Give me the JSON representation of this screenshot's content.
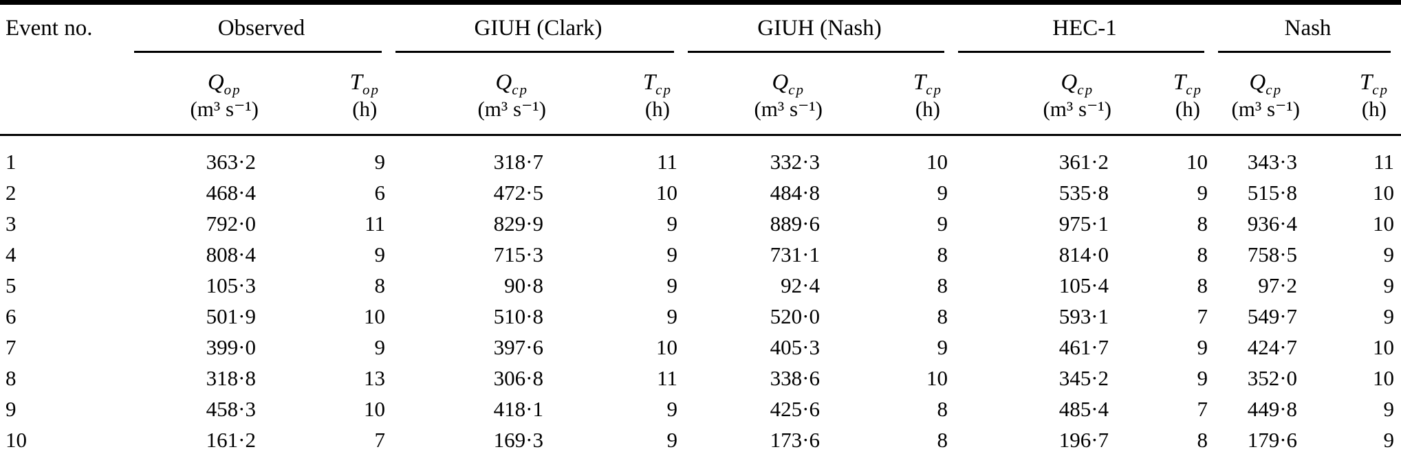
{
  "table": {
    "row_header": "Event no.",
    "groups": [
      {
        "label": "Observed",
        "q_symbol": "Q",
        "q_sub": "op",
        "q_unit": "(m³ s⁻¹)",
        "t_symbol": "T",
        "t_sub": "op",
        "t_unit": "(h)"
      },
      {
        "label": "GIUH (Clark)",
        "q_symbol": "Q",
        "q_sub": "cp",
        "q_unit": "(m³ s⁻¹)",
        "t_symbol": "T",
        "t_sub": "cp",
        "t_unit": "(h)"
      },
      {
        "label": "GIUH (Nash)",
        "q_symbol": "Q",
        "q_sub": "cp",
        "q_unit": "(m³ s⁻¹)",
        "t_symbol": "T",
        "t_sub": "cp",
        "t_unit": "(h)"
      },
      {
        "label": "HEC-1",
        "q_symbol": "Q",
        "q_sub": "cp",
        "q_unit": "(m³ s⁻¹)",
        "t_symbol": "T",
        "t_sub": "cp",
        "t_unit": "(h)"
      },
      {
        "label": "Nash",
        "q_symbol": "Q",
        "q_sub": "cp",
        "q_unit": "(m³ s⁻¹)",
        "t_symbol": "T",
        "t_sub": "cp",
        "t_unit": "(h)"
      }
    ],
    "rows": [
      {
        "event": "1",
        "values": [
          "363·2",
          "9",
          "318·7",
          "11",
          "332·3",
          "10",
          "361·2",
          "10",
          "343·3",
          "11"
        ]
      },
      {
        "event": "2",
        "values": [
          "468·4",
          "6",
          "472·5",
          "10",
          "484·8",
          "9",
          "535·8",
          "9",
          "515·8",
          "10"
        ]
      },
      {
        "event": "3",
        "values": [
          "792·0",
          "11",
          "829·9",
          "9",
          "889·6",
          "9",
          "975·1",
          "8",
          "936·4",
          "10"
        ]
      },
      {
        "event": "4",
        "values": [
          "808·4",
          "9",
          "715·3",
          "9",
          "731·1",
          "8",
          "814·0",
          "8",
          "758·5",
          "9"
        ]
      },
      {
        "event": "5",
        "values": [
          "105·3",
          "8",
          "90·8",
          "9",
          "92·4",
          "8",
          "105·4",
          "8",
          "97·2",
          "9"
        ]
      },
      {
        "event": "6",
        "values": [
          "501·9",
          "10",
          "510·8",
          "9",
          "520·0",
          "8",
          "593·1",
          "7",
          "549·7",
          "9"
        ]
      },
      {
        "event": "7",
        "values": [
          "399·0",
          "9",
          "397·6",
          "10",
          "405·3",
          "9",
          "461·7",
          "9",
          "424·7",
          "10"
        ]
      },
      {
        "event": "8",
        "values": [
          "318·8",
          "13",
          "306·8",
          "11",
          "338·6",
          "10",
          "345·2",
          "9",
          "352·0",
          "10"
        ]
      },
      {
        "event": "9",
        "values": [
          "458·3",
          "10",
          "418·1",
          "9",
          "425·6",
          "8",
          "485·4",
          "7",
          "449·8",
          "9"
        ]
      },
      {
        "event": "10",
        "values": [
          "161·2",
          "7",
          "169·3",
          "9",
          "173·6",
          "8",
          "196·7",
          "8",
          "179·6",
          "9"
        ]
      }
    ]
  }
}
